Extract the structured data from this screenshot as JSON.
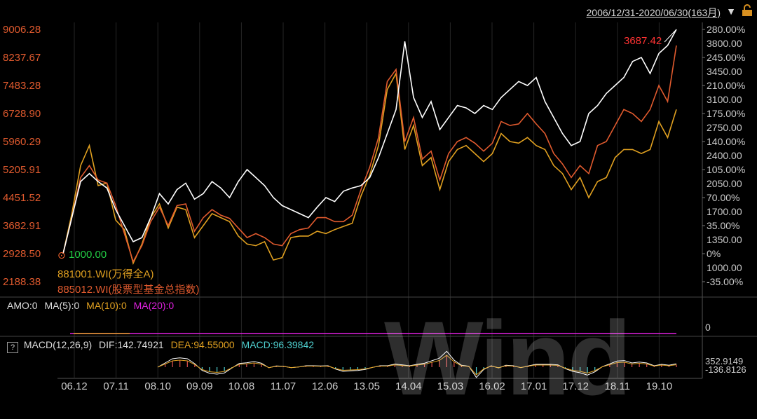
{
  "header": {
    "range_label": "2006/12/31-2020/06/30(163月)",
    "range_arrow": "▼",
    "lock_icon": "lock-icon"
  },
  "chart_data": {
    "type": "line",
    "y_left_ticks": [
      "9006.28",
      "8237.67",
      "7483.28",
      "6728.90",
      "5960.29",
      "5205.91",
      "4451.52",
      "3682.91",
      "2928.50",
      "2188.38"
    ],
    "y_right_pct_ticks": [
      "280.00%",
      "245.00%",
      "210.00%",
      "175.00%",
      "140.00%",
      "105.00%",
      "70.00%",
      "35.00%",
      "0%",
      "-35.00%"
    ],
    "y_right_val_ticks": [
      "3800.00",
      "3450.00",
      "3100.00",
      "2750.00",
      "2400.00",
      "2050.00",
      "1700.00",
      "1350.00",
      "1000.00"
    ],
    "x_ticks": [
      "06.12",
      "07.11",
      "08.10",
      "09.09",
      "10.08",
      "11.07",
      "12.06",
      "13.05",
      "14.04",
      "15.03",
      "16.02",
      "17.01",
      "17.12",
      "18.11",
      "19.10"
    ],
    "ylim_pct": [
      -35,
      280
    ],
    "start_label": "1000.00",
    "end_label": "3687.42",
    "series": [
      {
        "name": "881001.WI(万得全A)",
        "color": "#e0a020",
        "values": [
          0,
          50,
          110,
          135,
          85,
          88,
          42,
          30,
          -12,
          12,
          45,
          62,
          32,
          58,
          55,
          20,
          35,
          50,
          45,
          40,
          22,
          12,
          10,
          15,
          -8,
          -5,
          20,
          22,
          22,
          28,
          25,
          30,
          34,
          38,
          72,
          98,
          135,
          205,
          225,
          130,
          160,
          110,
          120,
          80,
          115,
          130,
          135,
          125,
          115,
          125,
          150,
          140,
          138,
          145,
          135,
          130,
          110,
          100,
          80,
          95,
          70,
          90,
          95,
          120,
          130,
          130,
          125,
          130,
          165,
          145,
          180
        ]
      },
      {
        "name": "885012.WI(股票型基金总指数)",
        "color": "#e05a2e",
        "values": [
          0,
          45,
          95,
          110,
          92,
          88,
          60,
          25,
          -10,
          10,
          40,
          58,
          35,
          60,
          62,
          28,
          45,
          55,
          48,
          44,
          32,
          20,
          25,
          20,
          12,
          10,
          25,
          30,
          32,
          45,
          45,
          40,
          40,
          48,
          80,
          108,
          145,
          215,
          230,
          140,
          170,
          118,
          128,
          92,
          125,
          140,
          145,
          138,
          128,
          138,
          165,
          160,
          162,
          175,
          162,
          150,
          125,
          112,
          95,
          110,
          100,
          135,
          140,
          160,
          180,
          175,
          165,
          180,
          210,
          190,
          260
        ]
      },
      {
        "name": "",
        "color": "#ffffff",
        "values": [
          0,
          45,
          90,
          100,
          90,
          82,
          55,
          35,
          15,
          20,
          45,
          75,
          62,
          80,
          88,
          68,
          75,
          90,
          82,
          70,
          90,
          105,
          95,
          85,
          70,
          60,
          55,
          50,
          45,
          58,
          70,
          65,
          78,
          82,
          85,
          95,
          120,
          150,
          180,
          265,
          195,
          170,
          190,
          155,
          170,
          185,
          182,
          175,
          185,
          180,
          195,
          205,
          215,
          210,
          220,
          190,
          170,
          150,
          135,
          140,
          175,
          185,
          200,
          210,
          220,
          240,
          245,
          225,
          250,
          260,
          280
        ]
      }
    ]
  },
  "axes": {
    "start_marker": "⊙"
  },
  "amo": {
    "label": "AMO:0",
    "ma5": "MA(5):0",
    "ma10": "MA(10):0",
    "ma20": "MA(20):0",
    "right_value": "0"
  },
  "macd": {
    "checkbox": "?",
    "label": "MACD(12,26,9)",
    "dif": "DIF:142.74921",
    "dea": "DEA:94.55000",
    "macd_val": "MACD:96.39842",
    "right_top": "352.9149",
    "right_bottom": "-136.8126"
  },
  "watermark": "Wind",
  "colors": {
    "axis_left": "#e05a2e",
    "axis_right": "#cccccc",
    "white_line": "#ffffff",
    "wind_line": "#e0a020",
    "fund_line": "#e05a2e",
    "end_label": "#ff3333",
    "start_label": "#22cc44",
    "ma10": "#e0a020",
    "ma20": "#e020e0",
    "dea": "#e0a020",
    "macd": "#4fd0d0"
  }
}
